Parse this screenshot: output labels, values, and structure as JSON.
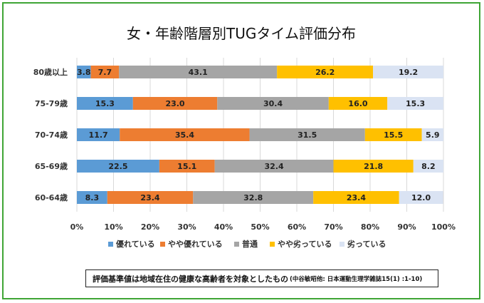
{
  "chart_data": {
    "type": "bar",
    "orientation": "horizontal",
    "stacked": "percent",
    "title": "女・年齢階層別TUGタイム評価分布",
    "categories": [
      "80歳以上",
      "75-79歳",
      "70-74歳",
      "65-69歳",
      "60-64歳"
    ],
    "series": [
      {
        "name": "優れている",
        "color": "#5b9bd5",
        "values": [
          3.8,
          15.3,
          11.7,
          22.5,
          8.3
        ]
      },
      {
        "name": "やや優れている",
        "color": "#ed7d31",
        "values": [
          7.7,
          23.0,
          35.4,
          15.1,
          23.4
        ]
      },
      {
        "name": "普通",
        "color": "#a5a5a5",
        "values": [
          43.1,
          30.4,
          31.5,
          32.4,
          32.8
        ]
      },
      {
        "name": "やや劣っている",
        "color": "#ffc000",
        "values": [
          26.2,
          16.0,
          15.5,
          21.8,
          23.4
        ]
      },
      {
        "name": "劣っている",
        "color": "#dae3f3",
        "values": [
          19.2,
          15.3,
          5.9,
          8.2,
          12.0
        ]
      }
    ],
    "x_ticks": [
      "0%",
      "10%",
      "20%",
      "30%",
      "40%",
      "50%",
      "60%",
      "70%",
      "80%",
      "90%",
      "100%"
    ],
    "xlim": [
      0,
      100
    ],
    "grid": true,
    "legend_position": "bottom"
  },
  "note": {
    "main": "評価基準値は地域在住の健康な高齢者を対象としたもの",
    "source": "(中谷敏昭他: 日本運動生理学雑誌15(1) :1-10)"
  }
}
